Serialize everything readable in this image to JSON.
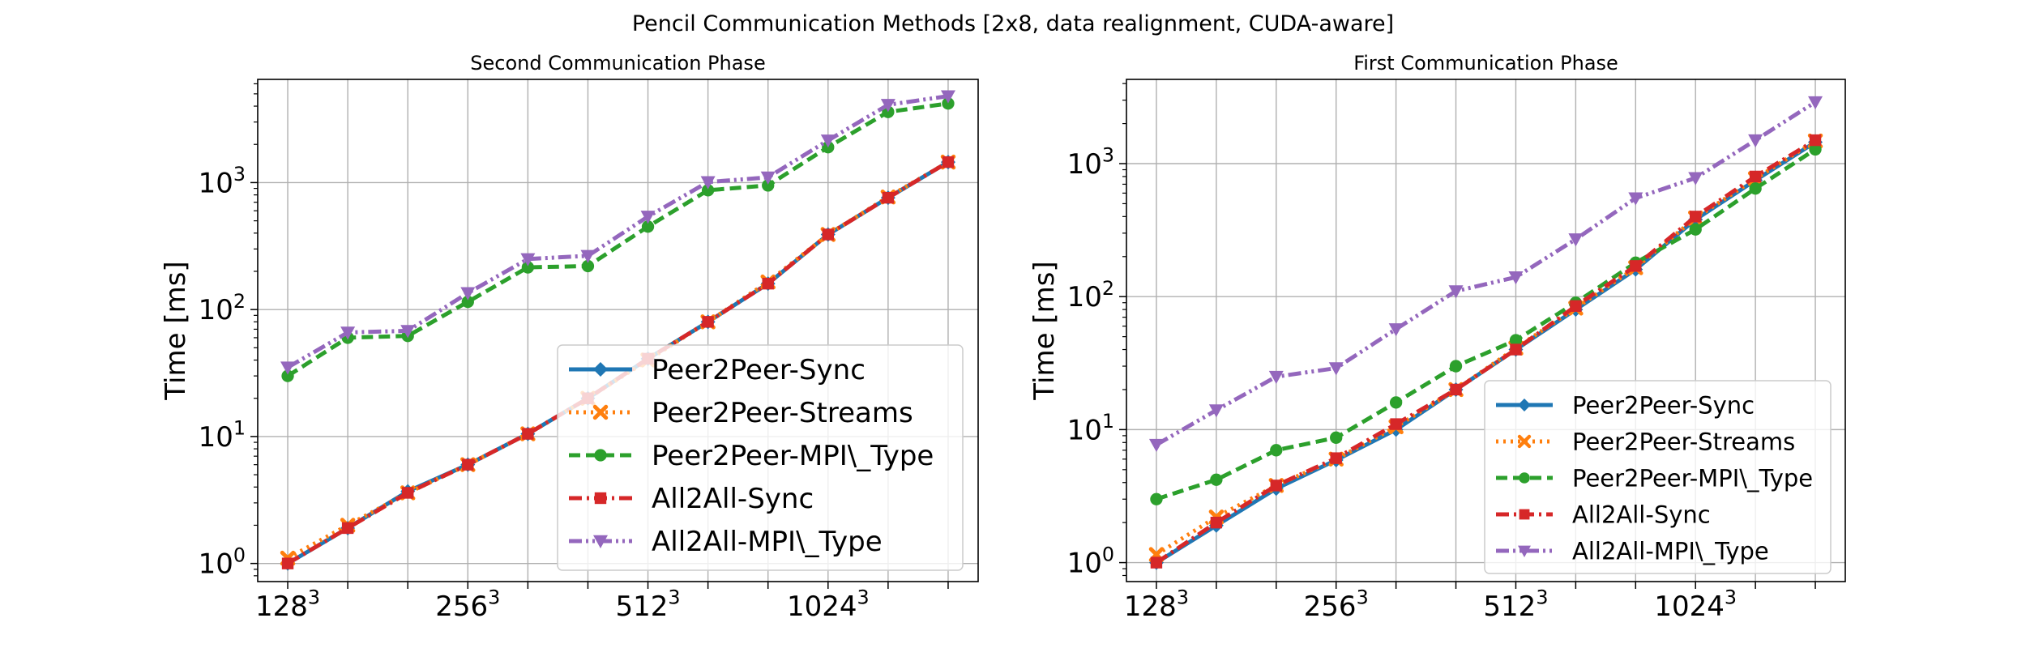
{
  "suptitle": "Pencil Communication Methods [2x8, data realignment, CUDA-aware]",
  "chart_data": [
    {
      "type": "line",
      "title": "Second Communication Phase",
      "ylabel": "Time [ms]",
      "xlabel": "",
      "y_scale": "log",
      "ylim": [
        0.72,
        6500
      ],
      "xlim": [
        -0.5,
        11.5
      ],
      "x": [
        0,
        1,
        2,
        3,
        4,
        5,
        6,
        7,
        8,
        9,
        10,
        11
      ],
      "x_tick_positions": [
        0,
        2,
        4,
        6,
        8,
        10
      ],
      "x_tick_labels": [
        [
          "128",
          "3"
        ],
        [
          "",
          ""
        ],
        [
          "256",
          "3"
        ],
        [
          "",
          ""
        ],
        [
          "512",
          "3"
        ],
        [
          "",
          ""
        ]
      ],
      "x_major_labels": [
        {
          "pos": 0,
          "base": "128",
          "exp": "3"
        },
        {
          "pos": 3,
          "base": "256",
          "exp": "3"
        },
        {
          "pos": 6,
          "base": "512",
          "exp": "3"
        },
        {
          "pos": 9,
          "base": "1024",
          "exp": "3"
        }
      ],
      "x_grid": [
        0,
        1,
        2,
        3,
        4,
        5,
        6,
        7,
        8,
        9,
        10,
        11
      ],
      "y_ticks": [
        {
          "value": 1,
          "base": "10",
          "exp": "0"
        },
        {
          "value": 10,
          "base": "10",
          "exp": "1"
        },
        {
          "value": 100,
          "base": "10",
          "exp": "2"
        },
        {
          "value": 1000,
          "base": "10",
          "exp": "3"
        }
      ],
      "grid": true,
      "legend_position": "lower-right",
      "legend_size": "large",
      "series": [
        {
          "name": "Peer2Peer-Sync",
          "color": "#1f77b4",
          "dash": "solid",
          "marker": "diamond",
          "values": [
            1.0,
            1.9,
            3.7,
            6.0,
            10.5,
            20.0,
            41.0,
            80.0,
            160.0,
            390.0,
            760.0,
            1450.0
          ]
        },
        {
          "name": "Peer2Peer-Streams",
          "color": "#ff7f0e",
          "dash": "dotted",
          "marker": "x",
          "values": [
            1.1,
            2.0,
            3.6,
            6.0,
            10.5,
            20.0,
            40.0,
            80.0,
            165.0,
            390.0,
            770.0,
            1450.0
          ]
        },
        {
          "name": "Peer2Peer-MPI\\_Type",
          "color": "#2ca02c",
          "dash": "dashed",
          "marker": "circle",
          "values": [
            30.0,
            60.0,
            62.0,
            115.0,
            215.0,
            220.0,
            450.0,
            870.0,
            950.0,
            1900.0,
            3600.0,
            4200.0
          ]
        },
        {
          "name": "All2All-Sync",
          "color": "#d62728",
          "dash": "dashdot",
          "marker": "square",
          "values": [
            1.0,
            1.9,
            3.6,
            6.0,
            10.5,
            20.0,
            41.0,
            80.0,
            160.0,
            390.0,
            760.0,
            1450.0
          ]
        },
        {
          "name": "All2All-MPI\\_Type",
          "color": "#9467bd",
          "dash": "dashdotdot",
          "marker": "triangle-down",
          "values": [
            35.0,
            66.0,
            68.0,
            135.0,
            250.0,
            265.0,
            540.0,
            1010.0,
            1100.0,
            2150.0,
            4100.0,
            4800.0
          ]
        }
      ]
    },
    {
      "type": "line",
      "title": "First Communication Phase",
      "ylabel": "Time [ms]",
      "xlabel": "",
      "y_scale": "log",
      "ylim": [
        0.72,
        4300
      ],
      "xlim": [
        -0.5,
        11.5
      ],
      "x": [
        0,
        1,
        2,
        3,
        4,
        5,
        6,
        7,
        8,
        9,
        10,
        11
      ],
      "x_major_labels": [
        {
          "pos": 0,
          "base": "128",
          "exp": "3"
        },
        {
          "pos": 3,
          "base": "256",
          "exp": "3"
        },
        {
          "pos": 6,
          "base": "512",
          "exp": "3"
        },
        {
          "pos": 9,
          "base": "1024",
          "exp": "3"
        }
      ],
      "x_grid": [
        0,
        1,
        2,
        3,
        4,
        5,
        6,
        7,
        8,
        9,
        10,
        11
      ],
      "y_ticks": [
        {
          "value": 1,
          "base": "10",
          "exp": "0"
        },
        {
          "value": 10,
          "base": "10",
          "exp": "1"
        },
        {
          "value": 100,
          "base": "10",
          "exp": "2"
        },
        {
          "value": 1000,
          "base": "10",
          "exp": "3"
        }
      ],
      "grid": true,
      "legend_position": "lower-right",
      "legend_size": "medium",
      "series": [
        {
          "name": "Peer2Peer-Sync",
          "color": "#1f77b4",
          "dash": "solid",
          "marker": "diamond",
          "values": [
            1.0,
            1.9,
            3.6,
            5.9,
            10.0,
            20.0,
            40.0,
            80.0,
            160.0,
            380.0,
            750.0,
            1450.0
          ]
        },
        {
          "name": "Peer2Peer-Streams",
          "color": "#ff7f0e",
          "dash": "dotted",
          "marker": "x",
          "values": [
            1.15,
            2.2,
            3.8,
            6.0,
            10.5,
            20.0,
            41.0,
            82.0,
            165.0,
            390.0,
            770.0,
            1480.0
          ]
        },
        {
          "name": "Peer2Peer-MPI\\_Type",
          "color": "#2ca02c",
          "dash": "dashed",
          "marker": "circle",
          "values": [
            3.0,
            4.2,
            7.0,
            8.7,
            16.0,
            30.0,
            47.0,
            90.0,
            180.0,
            320.0,
            650.0,
            1280.0
          ]
        },
        {
          "name": "All2All-Sync",
          "color": "#d62728",
          "dash": "dashdot",
          "marker": "square",
          "values": [
            1.0,
            2.0,
            3.8,
            6.1,
            11.0,
            20.0,
            40.0,
            85.0,
            170.0,
            400.0,
            800.0,
            1500.0
          ]
        },
        {
          "name": "All2All-MPI\\_Type",
          "color": "#9467bd",
          "dash": "dashdotdot",
          "marker": "triangle-down",
          "values": [
            7.7,
            14.0,
            25.0,
            29.0,
            57.0,
            110.0,
            140.0,
            270.0,
            550.0,
            780.0,
            1500.0,
            2900.0
          ]
        }
      ]
    }
  ]
}
